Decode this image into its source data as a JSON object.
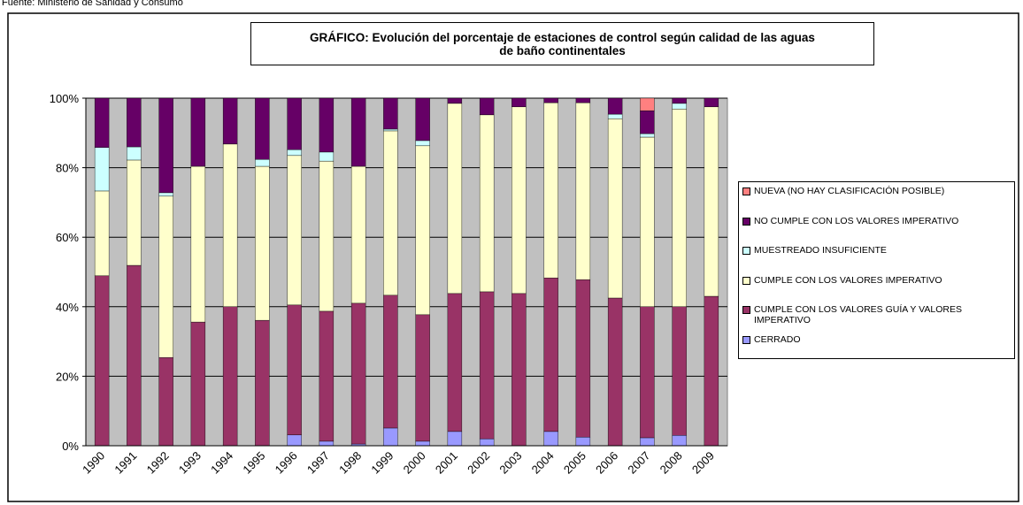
{
  "source": "Fuente: Ministerio de Sanidad y Consumo",
  "chart_data": {
    "type": "stacked_bar",
    "title": "GRÁFICO: Evolución del porcentaje de estaciones de control según calidad de las aguas de baño continentales",
    "categories": [
      "1990",
      "1991",
      "1992",
      "1993",
      "1994",
      "1995",
      "1996",
      "1997",
      "1998",
      "1999",
      "2000",
      "2001",
      "2002",
      "2003",
      "2004",
      "2005",
      "2006",
      "2007",
      "2008",
      "2009"
    ],
    "series": [
      {
        "name": "CERRADO",
        "color": "#9999ff",
        "values": [
          0,
          0,
          0,
          0,
          0,
          0,
          3.1,
          1.3,
          0.5,
          5.1,
          1.3,
          4.1,
          2,
          0,
          4.1,
          2.5,
          0,
          2.3,
          3,
          0
        ]
      },
      {
        "name": "CUMPLE CON LOS VALORES GUÍA Y VALORES IMPERATIVO",
        "color": "#993366",
        "values": [
          48.9,
          51.9,
          25.4,
          35.6,
          40,
          36.1,
          37.4,
          37.4,
          40.5,
          38.2,
          36.4,
          39.7,
          42.3,
          43.8,
          44.2,
          45.3,
          42.5,
          37.7,
          37,
          43
        ]
      },
      {
        "name": "CUMPLE CON LOS VALORES IMPERATIVO",
        "color": "#ffffcc",
        "values": [
          24.4,
          30.3,
          46.4,
          44.8,
          46.8,
          44.3,
          43,
          43.2,
          39.4,
          47.3,
          48.6,
          54.7,
          50.9,
          53.7,
          50.4,
          50.9,
          51.6,
          48.8,
          56.9,
          54.5
        ]
      },
      {
        "name": "MUESTREADO INSUFICIENTE",
        "color": "#ccffff",
        "values": [
          12.5,
          3.8,
          1,
          0,
          0,
          2,
          1.7,
          2.6,
          0,
          0.5,
          1.5,
          0,
          0,
          0,
          0,
          0,
          1.3,
          1,
          1.6,
          0
        ]
      },
      {
        "name": "NO CUMPLE CON LOS VALORES IMPERATIVO",
        "color": "#660066",
        "values": [
          14.2,
          14,
          27.2,
          19.6,
          13.2,
          17.6,
          14.8,
          15.5,
          19.6,
          8.9,
          12.2,
          1.5,
          4.8,
          2.5,
          1.3,
          1.3,
          4.6,
          6.6,
          1.5,
          2.5
        ]
      },
      {
        "name": "NUEVA (NO HAY CLASIFICACIÓN POSIBLE)",
        "color": "#ff8080",
        "values": [
          0,
          0,
          0,
          0,
          0,
          0,
          0,
          0,
          0,
          0,
          0,
          0,
          0,
          0,
          0,
          0,
          0,
          3.6,
          0,
          0
        ]
      }
    ],
    "ylim": [
      0,
      100
    ],
    "yticks": [
      {
        "value": 0,
        "label": "0%"
      },
      {
        "value": 20,
        "label": "20%"
      },
      {
        "value": 40,
        "label": "40%"
      },
      {
        "value": 60,
        "label": "60%"
      },
      {
        "value": 80,
        "label": "80%"
      },
      {
        "value": 100,
        "label": "100%"
      }
    ],
    "grid": true,
    "plot_background": "#c0c0c0"
  }
}
